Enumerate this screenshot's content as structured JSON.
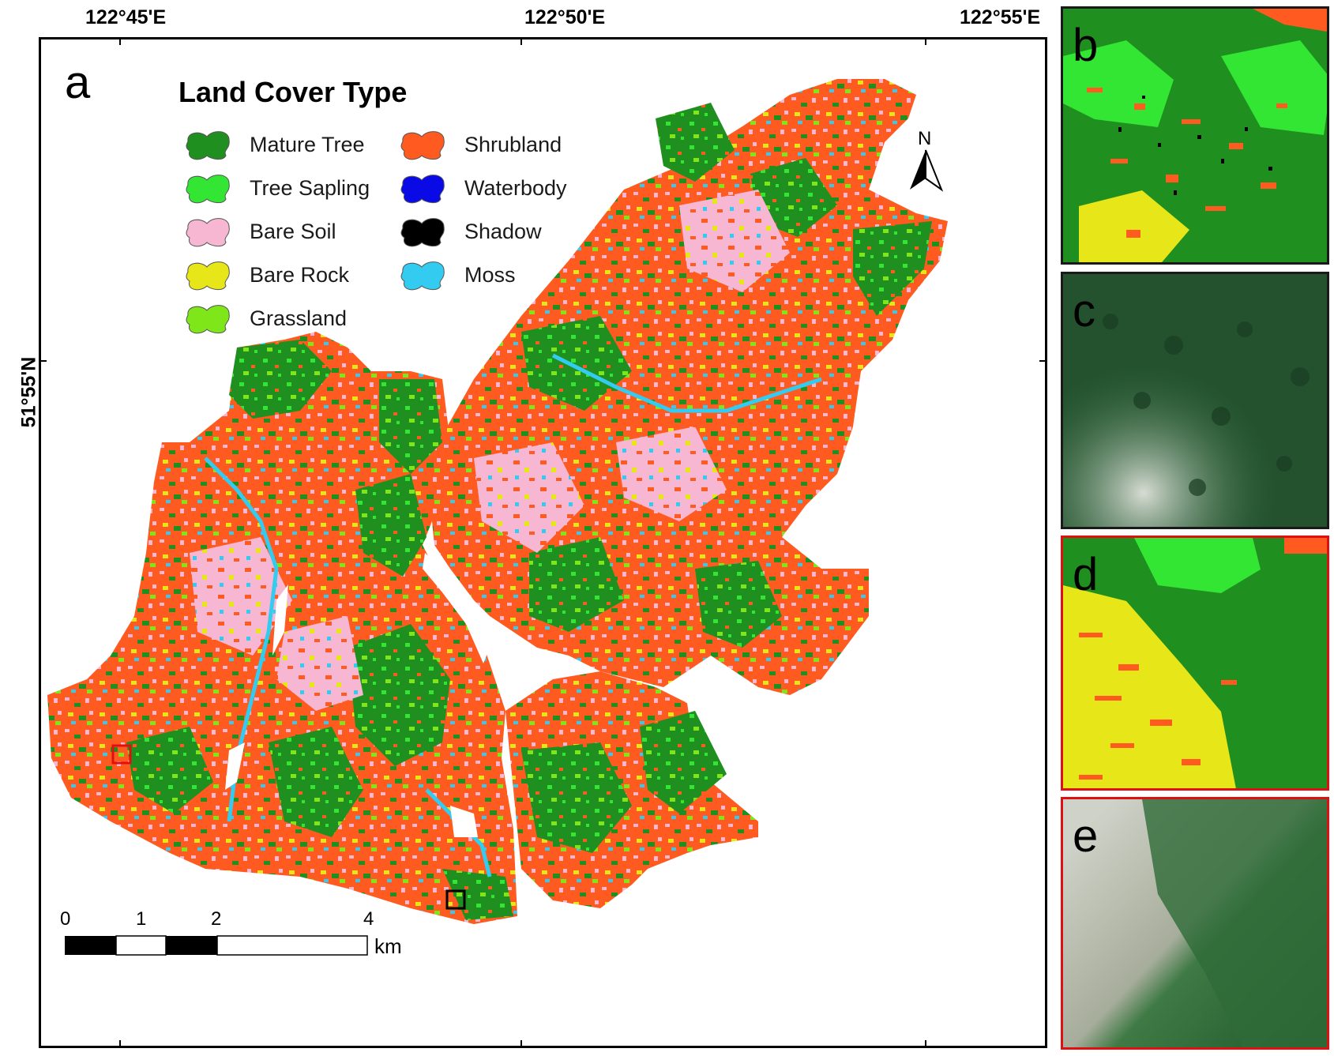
{
  "map": {
    "panel_label": "a",
    "top_ticks": [
      "122°45'E",
      "122°50'E",
      "122°55'E"
    ],
    "left_tick": "51°55'N",
    "north_label": "N",
    "legend": {
      "title": "Land Cover Type",
      "items": [
        {
          "label": "Mature Tree",
          "color": "#1f8f1f"
        },
        {
          "label": "Tree Sapling",
          "color": "#33e633"
        },
        {
          "label": "Bare Soil",
          "color": "#f7b6d2"
        },
        {
          "label": "Bare Rock",
          "color": "#e6e619"
        },
        {
          "label": "Grassland",
          "color": "#7fe619"
        },
        {
          "label": "Shrubland",
          "color": "#ff5a1f"
        },
        {
          "label": "Waterbody",
          "color": "#0a0ae6"
        },
        {
          "label": "Shadow",
          "color": "#000000"
        },
        {
          "label": "Moss",
          "color": "#33ccf0"
        }
      ]
    },
    "scale_bar": {
      "ticks": [
        "0",
        "1",
        "2",
        "4"
      ],
      "unit": "km"
    },
    "highlight_boxes": {
      "red_box_color": "#e01010",
      "black_box_color": "#000000"
    }
  },
  "insets": [
    {
      "label": "b",
      "border_color": "#1a1a1a",
      "kind": "classified"
    },
    {
      "label": "c",
      "border_color": "#1a1a1a",
      "kind": "imagery"
    },
    {
      "label": "d",
      "border_color": "#e01010",
      "kind": "classified"
    },
    {
      "label": "e",
      "border_color": "#e01010",
      "kind": "imagery"
    }
  ]
}
